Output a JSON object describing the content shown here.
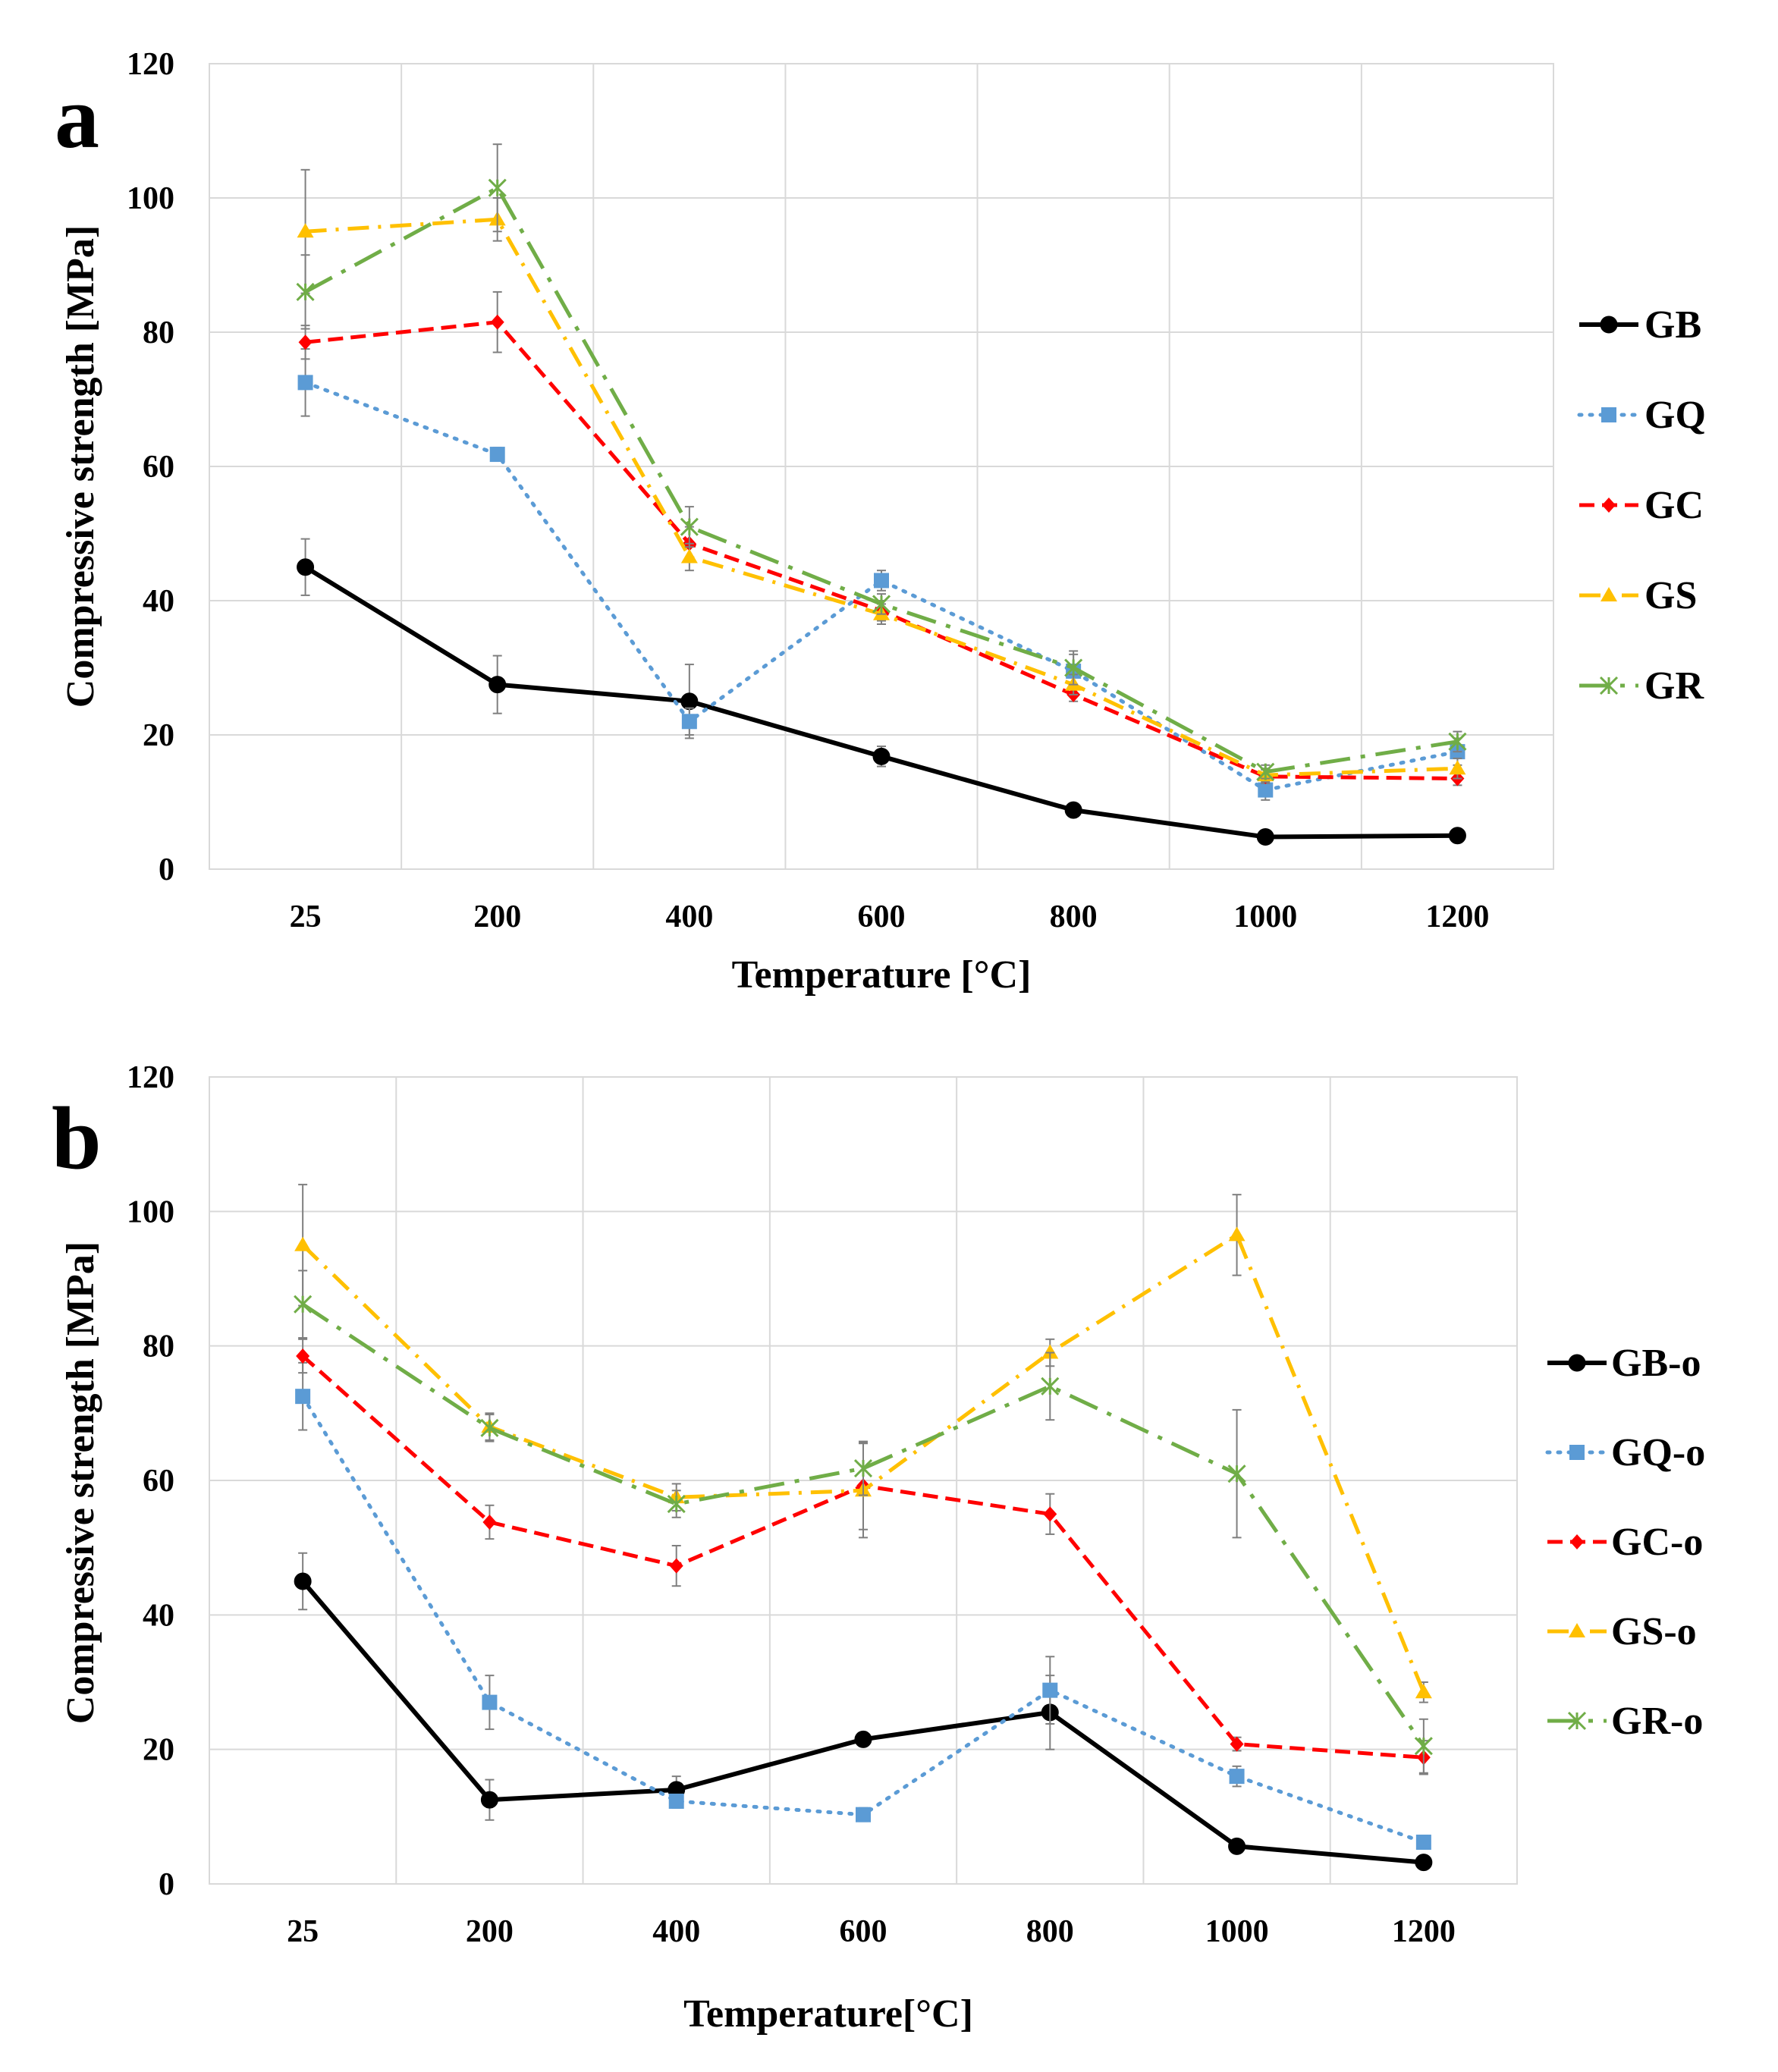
{
  "chart_data": [
    {
      "panel_label": "a",
      "type": "line",
      "xlabel": "Temperature [°C]",
      "ylabel": "Compressive strength [MPa]",
      "categories": [
        "25",
        "200",
        "400",
        "600",
        "800",
        "1000",
        "1200"
      ],
      "ylim": [
        0,
        120
      ],
      "yticks": [
        "0",
        "20",
        "40",
        "60",
        "80",
        "100",
        "120"
      ],
      "grid": true,
      "legend_position": "right",
      "series": [
        {
          "name": "GB",
          "color": "#000000",
          "dash": "solid",
          "marker": "circle",
          "values": [
            45,
            27.5,
            25,
            16.8,
            8.8,
            4.8,
            5
          ],
          "errors": [
            4.2,
            4.3,
            5.5,
            1.5,
            1,
            0.4,
            0.4
          ]
        },
        {
          "name": "GQ",
          "color": "#5b9bd5",
          "dash": "dot",
          "marker": "square",
          "values": [
            72.5,
            61.8,
            22,
            43,
            29.5,
            11.8,
            17.5
          ],
          "errors": [
            5,
            1,
            2,
            1.5,
            2.5,
            1.5,
            2
          ]
        },
        {
          "name": "GC",
          "color": "#ff0000",
          "dash": "dash",
          "marker": "diamond",
          "values": [
            78.5,
            81.5,
            48.5,
            38.5,
            26,
            13.8,
            13.5
          ],
          "errors": [
            2.5,
            4.5,
            2.5,
            1.5,
            1,
            1,
            1
          ]
        },
        {
          "name": "GS",
          "color": "#ffc000",
          "dash": "dashdot",
          "marker": "triangle",
          "values": [
            95,
            96.8,
            46.5,
            38,
            27.5,
            14,
            15
          ],
          "errors": [
            9.2,
            3.2,
            2,
            1.5,
            1.5,
            1,
            1.5
          ]
        },
        {
          "name": "GR",
          "color": "#70ad47",
          "dash": "longdashdot",
          "marker": "star",
          "values": [
            86,
            101.5,
            51,
            39.5,
            30,
            14.5,
            19
          ],
          "errors": [
            5.5,
            6.5,
            3,
            1.5,
            2.5,
            1,
            1.5
          ]
        }
      ]
    },
    {
      "panel_label": "b",
      "type": "line",
      "xlabel": "Temperature[°C]",
      "ylabel": "Compressive strength [MPa]",
      "categories": [
        "25",
        "200",
        "400",
        "600",
        "800",
        "1000",
        "1200"
      ],
      "ylim": [
        0,
        120
      ],
      "yticks": [
        "0",
        "20",
        "40",
        "60",
        "80",
        "100",
        "120"
      ],
      "grid": true,
      "legend_position": "right",
      "series": [
        {
          "name": "GB-o",
          "color": "#000000",
          "dash": "solid",
          "marker": "circle",
          "values": [
            45,
            12.5,
            14,
            21.5,
            25.5,
            5.6,
            3.2
          ],
          "errors": [
            4.2,
            3,
            2,
            1,
            5.5,
            0.5,
            0.5
          ]
        },
        {
          "name": "GQ-o",
          "color": "#5b9bd5",
          "dash": "dot",
          "marker": "square",
          "values": [
            72.5,
            27,
            12.3,
            10.3,
            28.8,
            16,
            6.2
          ],
          "errors": [
            5,
            4,
            1,
            1,
            5,
            1.5,
            1
          ]
        },
        {
          "name": "GC-o",
          "color": "#ff0000",
          "dash": "dash",
          "marker": "diamond",
          "values": [
            78.5,
            53.8,
            47.3,
            59.2,
            55,
            20.8,
            18.8
          ],
          "errors": [
            2.5,
            2.5,
            3,
            6.5,
            3,
            1,
            2.5
          ]
        },
        {
          "name": "GS-o",
          "color": "#ffc000",
          "dash": "dashdot",
          "marker": "triangle",
          "values": [
            95,
            68,
            57.5,
            58.5,
            79,
            96.5,
            28.5
          ],
          "errors": [
            9,
            2,
            2,
            7,
            2,
            6,
            1.5
          ]
        },
        {
          "name": "GR-o",
          "color": "#70ad47",
          "dash": "longdashdot",
          "marker": "star",
          "values": [
            86.2,
            67.8,
            56.5,
            61.8,
            74,
            61,
            20.5
          ],
          "errors": [
            5,
            2,
            2,
            4,
            5,
            9.5,
            4
          ]
        }
      ]
    }
  ]
}
